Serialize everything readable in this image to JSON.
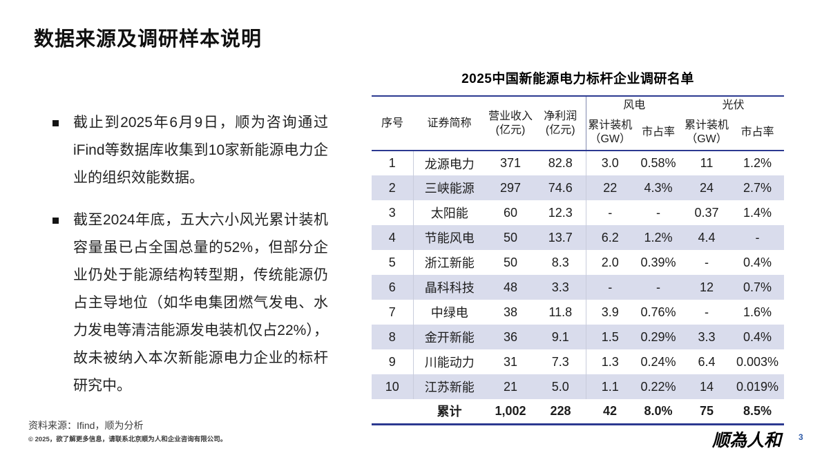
{
  "colors": {
    "accent_blue": "#2b3990",
    "row_shade": "#d9dcec",
    "divider_gray": "#c8ccdb",
    "page_number_blue": "#2f5ba8"
  },
  "header": {
    "title": "数据来源及调研样本说明"
  },
  "left_panel": {
    "bullets": [
      {
        "text": "截止到2025年6月9日，顺为咨询通过iFind等数据库收集到10家新能源电力企业的组织效能数据。"
      },
      {
        "text": "截至2024年底，五大六小风光累计装机容量虽已占全国总量的52%，但部分企业仍处于能源结构转型期，传统能源仍占主导地位（如华电集团燃气发电、水力发电等清洁能源发电装机仅占22%），故未被纳入本次新能源电力企业的标杆研究中。"
      }
    ]
  },
  "table": {
    "title": "2025中国新能源电力标杆企业调研名单",
    "headers": {
      "seq": "序号",
      "name": "证券简称",
      "revenue_line1": "营业收入",
      "revenue_line2": "(亿元)",
      "profit_line1": "净利润",
      "profit_line2": "(亿元)",
      "wind_group": "风电",
      "solar_group": "光伏",
      "capacity_line1": "累计装机",
      "capacity_line2": "（GW）",
      "share": "市占率"
    },
    "rows": [
      {
        "seq": "1",
        "name": "龙源电力",
        "revenue": "371",
        "profit": "82.8",
        "wind_cap": "3.0",
        "wind_share": "0.58%",
        "solar_cap": "11",
        "solar_share": "1.2%"
      },
      {
        "seq": "2",
        "name": "三峡能源",
        "revenue": "297",
        "profit": "74.6",
        "wind_cap": "22",
        "wind_share": "4.3%",
        "solar_cap": "24",
        "solar_share": "2.7%"
      },
      {
        "seq": "3",
        "name": "太阳能",
        "revenue": "60",
        "profit": "12.3",
        "wind_cap": "-",
        "wind_share": "-",
        "solar_cap": "0.37",
        "solar_share": "1.4%"
      },
      {
        "seq": "4",
        "name": "节能风电",
        "revenue": "50",
        "profit": "13.7",
        "wind_cap": "6.2",
        "wind_share": "1.2%",
        "solar_cap": "4.4",
        "solar_share": "-"
      },
      {
        "seq": "5",
        "name": "浙江新能",
        "revenue": "50",
        "profit": "8.3",
        "wind_cap": "2.0",
        "wind_share": "0.39%",
        "solar_cap": "-",
        "solar_share": "0.4%"
      },
      {
        "seq": "6",
        "name": "晶科科技",
        "revenue": "48",
        "profit": "3.3",
        "wind_cap": "-",
        "wind_share": "-",
        "solar_cap": "12",
        "solar_share": "0.7%"
      },
      {
        "seq": "7",
        "name": "中绿电",
        "revenue": "38",
        "profit": "11.8",
        "wind_cap": "3.9",
        "wind_share": "0.76%",
        "solar_cap": "-",
        "solar_share": "1.6%"
      },
      {
        "seq": "8",
        "name": "金开新能",
        "revenue": "36",
        "profit": "9.1",
        "wind_cap": "1.5",
        "wind_share": "0.29%",
        "solar_cap": "3.3",
        "solar_share": "0.4%"
      },
      {
        "seq": "9",
        "name": "川能动力",
        "revenue": "31",
        "profit": "7.3",
        "wind_cap": "1.3",
        "wind_share": "0.24%",
        "solar_cap": "6.4",
        "solar_share": "0.003%"
      },
      {
        "seq": "10",
        "name": "江苏新能",
        "revenue": "21",
        "profit": "5.0",
        "wind_cap": "1.1",
        "wind_share": "0.22%",
        "solar_cap": "14",
        "solar_share": "0.019%"
      }
    ],
    "total": {
      "label": "累计",
      "revenue": "1,002",
      "profit": "228",
      "wind_cap": "42",
      "wind_share": "8.0%",
      "solar_cap": "75",
      "solar_share": "8.5%"
    }
  },
  "footer": {
    "source": "资料来源：Ifind，顺为分析",
    "copyright": "© 2025，欲了解更多信息，请联系北京顺为人和企业咨询有限公司。",
    "logo": "顺為人和",
    "page_number": "3"
  }
}
